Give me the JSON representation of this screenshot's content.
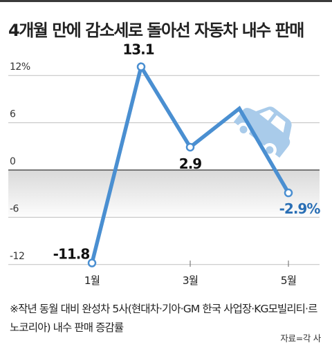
{
  "title": "4개월 만에 감소세로 돌아선 자동차 내수 판매",
  "chart_data": {
    "type": "line",
    "title": "4개월 만에 감소세로 돌아선 자동차 내수 판매",
    "xlabel": "",
    "ylabel": "",
    "unit": "%",
    "x": [
      1,
      2,
      3,
      4,
      5
    ],
    "x_tick_labels": [
      {
        "x": 1,
        "label": "1월"
      },
      {
        "x": 3,
        "label": "3월"
      },
      {
        "x": 5,
        "label": "5월"
      }
    ],
    "y_ticks": [
      12,
      6,
      0,
      -6,
      -12
    ],
    "y_tick_labels": [
      "12%",
      "6",
      "0",
      "-6",
      "-12"
    ],
    "ylim": [
      -13,
      15
    ],
    "series": [
      {
        "values": [
          -11.8,
          13.1,
          2.9,
          7.8,
          -2.9
        ],
        "color": "#4a8fd1"
      }
    ],
    "data_labels": [
      {
        "index": 0,
        "text": "-11.8",
        "color": "#111111"
      },
      {
        "index": 1,
        "text": "13.1",
        "color": "#111111"
      },
      {
        "index": 2,
        "text": "2.9",
        "color": "#111111"
      },
      {
        "index": 4,
        "text": "-2.9%",
        "color": "#2a6fb5"
      }
    ],
    "grid": "horizontal",
    "negative_region_shading": true,
    "decoration": "car-icon"
  },
  "footnote": "※작년 동월 대비 완성차 5사(현대차·기아·GM 한국 사업장·KG모빌리티·르노코리아) 내수 판매 증감률",
  "source": "자료=각 사",
  "colors": {
    "line": "#4a8fd1",
    "marker_fill": "#ffffff",
    "highlight_label": "#2a6fb5",
    "grid": "#bfbfbf",
    "zero_line": "#333333",
    "car": "#a9cbea"
  }
}
